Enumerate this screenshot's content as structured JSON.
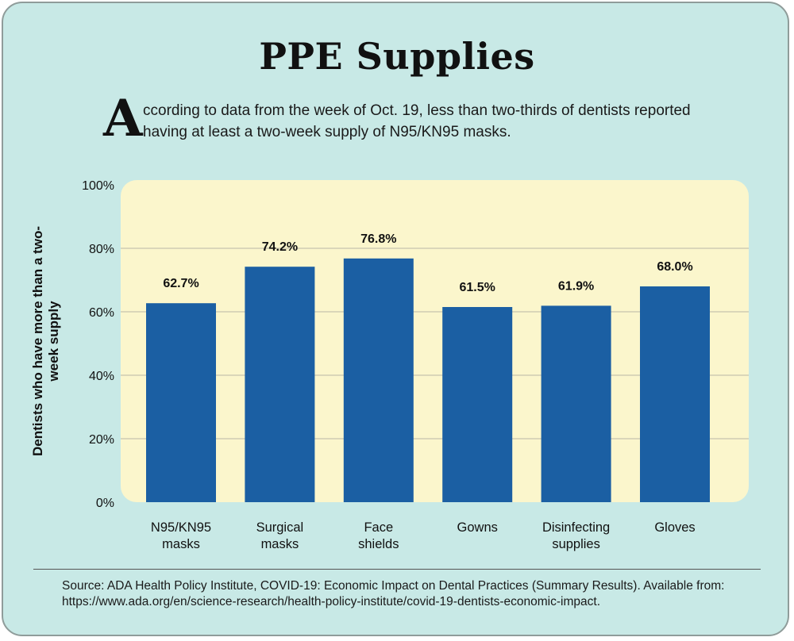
{
  "title": "PPE Supplies",
  "intro": {
    "drop_cap": "A",
    "text": "ccording to data from the week of Oct. 19, less than two-thirds of dentists reported having at least a two-week supply of N95/KN95 masks."
  },
  "source": "Source: ADA Health Policy Institute, COVID-19: Economic Impact on Dental Practices (Summary Results). Available from: https://www.ada.org/en/science-research/health-policy-institute/covid-19-dentists-economic-impact.",
  "colors": {
    "background": "#c8e9e6",
    "plot_area": "#fbf6cc",
    "bar": "#1b5fa3",
    "gridline": "#b9b7a6"
  },
  "chart_data": {
    "type": "bar",
    "title": "",
    "xlabel": "",
    "ylabel": "Dentists who have more than a two-week supply",
    "ylim": [
      0,
      100
    ],
    "y_ticks": [
      0,
      20,
      40,
      60,
      80,
      100
    ],
    "y_tick_labels": [
      "0%",
      "20%",
      "40%",
      "60%",
      "80%",
      "100%"
    ],
    "grid": true,
    "categories": [
      [
        "N95/KN95",
        "masks"
      ],
      [
        "Surgical",
        "masks"
      ],
      [
        "Face",
        "shields"
      ],
      [
        "Gowns"
      ],
      [
        "Disinfecting",
        "supplies"
      ],
      [
        "Gloves"
      ]
    ],
    "values": [
      62.7,
      74.2,
      76.8,
      61.5,
      61.9,
      68.0
    ],
    "data_labels": [
      "62.7%",
      "74.2%",
      "76.8%",
      "61.5%",
      "61.9%",
      "68.0%"
    ]
  }
}
